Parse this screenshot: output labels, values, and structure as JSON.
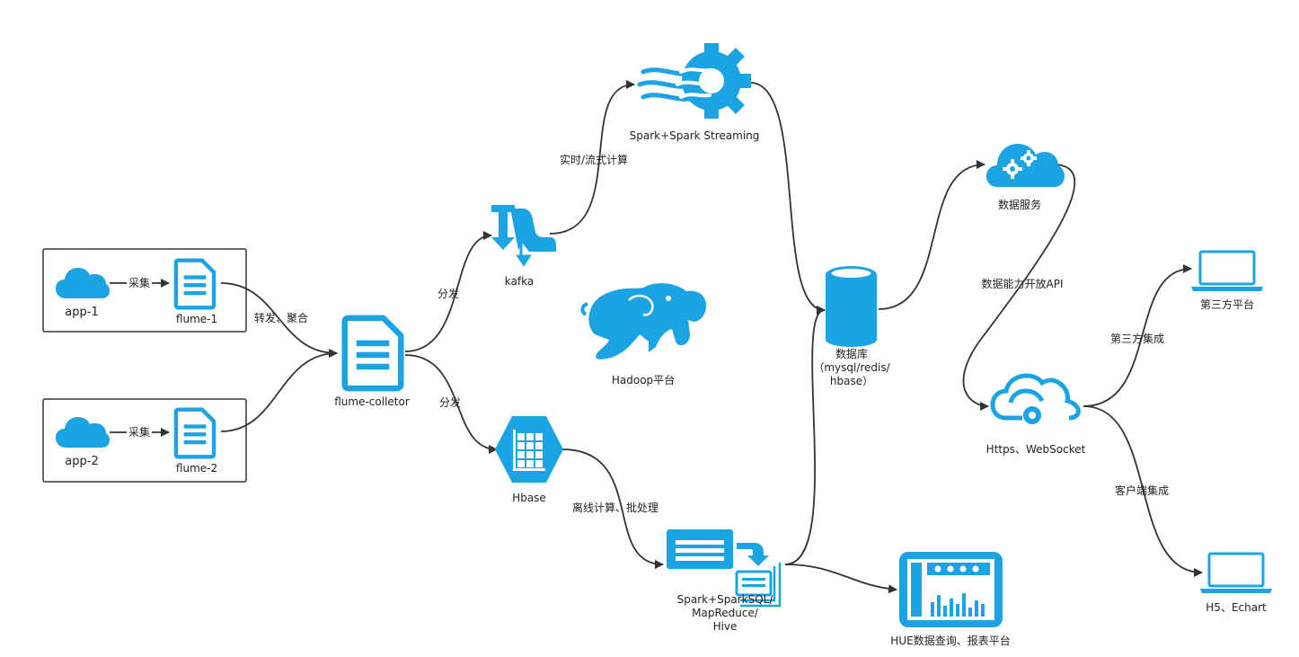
{
  "colors": {
    "accent": "#1ca3e3",
    "line": "#333333",
    "box": "#333333"
  },
  "nodes": {
    "app1": {
      "label": "app-1",
      "icon": "cloud-icon"
    },
    "app2": {
      "label": "app-2",
      "icon": "cloud-icon"
    },
    "flume1": {
      "label": "flume-1",
      "icon": "document-icon"
    },
    "flume2": {
      "label": "flume-2",
      "icon": "document-icon"
    },
    "collector": {
      "label": "flume-colletor",
      "icon": "document-icon"
    },
    "kafka": {
      "label": "kafka",
      "icon": "kafka-icon"
    },
    "hbase": {
      "label": "Hbase",
      "icon": "grid-hexagon-icon"
    },
    "spark_streaming": {
      "label": "Spark+Spark Streaming",
      "icon": "streaming-gear-icon"
    },
    "hadoop": {
      "label": "Hadoop平台",
      "icon": "elephant-icon"
    },
    "batch": {
      "lines": [
        "Spark+SparkSQL/",
        "MapReduce/",
        "Hive"
      ],
      "icon": "batch-window-icon"
    },
    "database": {
      "lines": [
        "数据库",
        "（mysql/redis/",
        "hbase）"
      ],
      "icon": "database-cylinder-icon"
    },
    "hue": {
      "label": "HUE数据查询、报表平台",
      "icon": "dashboard-icon"
    },
    "data_service": {
      "label": "数据服务",
      "icon": "cloud-gears-icon"
    },
    "https": {
      "label": "Https、WebSocket",
      "icon": "cloud-connection-icon"
    },
    "third_party": {
      "label": "第三方平台",
      "icon": "laptop-icon"
    },
    "h5": {
      "label": "H5、Echart",
      "icon": "laptop-icon"
    }
  },
  "edges": {
    "collect1": "采集",
    "collect2": "采集",
    "forward": "转发、聚合",
    "dist1": "分发",
    "dist2": "分发",
    "realtime": "实时/流式计算",
    "offline": "离线计算、批处理",
    "api": "数据能力开放API",
    "third": "第三方集成",
    "client": "客户端集成"
  }
}
